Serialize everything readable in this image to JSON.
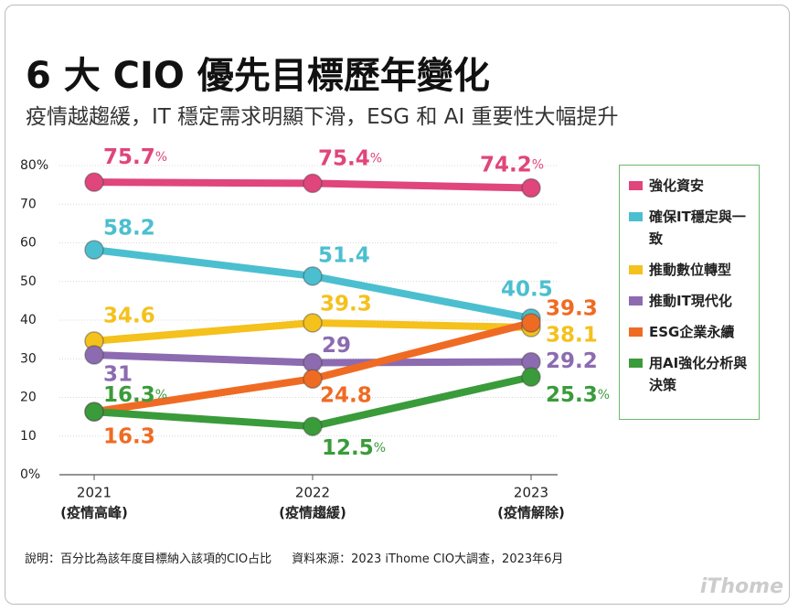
{
  "chart_data": {
    "type": "line",
    "title": "6 大 CIO 優先目標歷年變化",
    "subtitle": "疫情越趨緩，IT 穩定需求明顯下滑，ESG 和 AI 重要性大幅提升",
    "categories": [
      "2021",
      "2022",
      "2023"
    ],
    "category_subtitles": [
      "(疫情高峰)",
      "(疫情趨緩)",
      "(疫情解除)"
    ],
    "ylim": [
      0,
      80
    ],
    "yticks": [
      {
        "value": 0,
        "label": "0%"
      },
      10,
      20,
      30,
      40,
      50,
      60,
      70,
      {
        "value": 80,
        "label": "80%"
      }
    ],
    "grid": true,
    "legend": "right",
    "series": [
      {
        "name": "強化資安",
        "color": "#e0457b",
        "values": [
          75.7,
          75.4,
          74.2
        ],
        "value_labels": [
          "75.7%",
          "75.4%",
          "74.2%"
        ]
      },
      {
        "name": "確保IT穩定與一致",
        "color": "#4bbfcf",
        "values": [
          58.2,
          51.4,
          40.5
        ]
      },
      {
        "name": "推動數位轉型",
        "color": "#f4c11d",
        "values": [
          34.6,
          39.3,
          38.1
        ]
      },
      {
        "name": "推動IT現代化",
        "color": "#8c6bb1",
        "values": [
          31,
          29,
          29.2
        ]
      },
      {
        "name": "ESG企業永續",
        "color": "#ef6b23",
        "values": [
          16.3,
          24.8,
          39.3
        ]
      },
      {
        "name": "用AI強化分析與決策",
        "color": "#3a9b3a",
        "values": [
          16.3,
          12.5,
          25.3
        ],
        "value_labels": [
          "16.3%",
          "12.5%",
          "25.3%"
        ]
      }
    ],
    "notes": [
      "說明：百分比為該年度目標納入該項的CIO占比",
      "資料來源：2023 iThome CIO大調查，2023年6月"
    ],
    "logo": "iThome"
  }
}
